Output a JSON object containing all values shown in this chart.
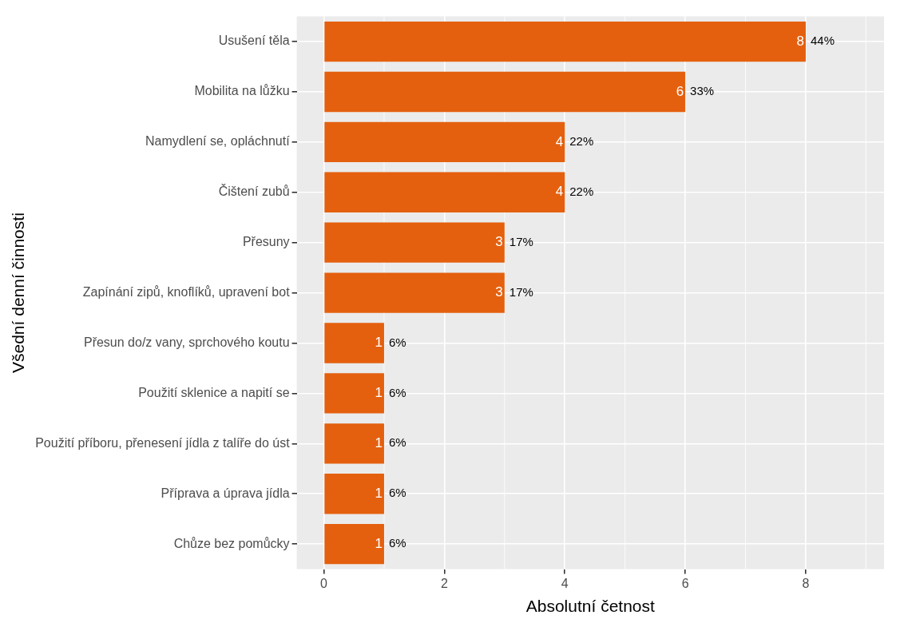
{
  "chart_data": {
    "type": "bar",
    "orientation": "horizontal",
    "xlabel": "Absolutní četnost",
    "ylabel": "Všední denní činnosti",
    "categories": [
      "Usušení těla",
      "Mobilita na lůžku",
      "Namydlení se, opláchnutí",
      "Čištení zubů",
      "Přesuny",
      "Zapínání zipů, knoflíků, upravení bot",
      "Přesun do/z vany, sprchového koutu",
      "Použití sklenice a napití se",
      "Použití příboru, přenesení jídla z talíře do úst",
      "Příprava a úprava jídla",
      "Chůze bez pomůcky"
    ],
    "values": [
      8,
      6,
      4,
      4,
      3,
      3,
      1,
      1,
      1,
      1,
      1
    ],
    "value_labels": [
      "8",
      "6",
      "4",
      "4",
      "3",
      "3",
      "1",
      "1",
      "1",
      "1",
      "1"
    ],
    "annotations": [
      {
        "text": "44%",
        "x": 8,
        "y": "Usušení těla"
      },
      {
        "text": "33%",
        "x": 6,
        "y": "Mobilita na lůžku"
      },
      {
        "text": "22%",
        "x": 4,
        "y": "Namydlení se, opláchnutí"
      },
      {
        "text": "22%",
        "x": 4,
        "y": "Čištení zubů"
      },
      {
        "text": "17%",
        "x": 3,
        "y": "Přesuny"
      },
      {
        "text": "17%",
        "x": 3,
        "y": "Zapínání zipů, knoflíků, upravení bot"
      },
      {
        "text": "6%",
        "x": 1,
        "y": "Přesun do/z vany, sprchového koutu"
      },
      {
        "text": "6%",
        "x": 1,
        "y": "Použití sklenice a napití se"
      },
      {
        "text": "6%",
        "x": 1,
        "y": "Použití příboru, přenesení jídla z talíře do úst"
      },
      {
        "text": "6%",
        "x": 1,
        "y": "Příprava a úprava jídla"
      },
      {
        "text": "6%",
        "x": 1,
        "y": "Chůze bez pomůcky"
      }
    ],
    "color": "#e4600e",
    "xlim": [
      -0.45,
      9.3
    ],
    "xticks": [
      0,
      2,
      4,
      6,
      8
    ],
    "grid": true,
    "legend": false
  }
}
